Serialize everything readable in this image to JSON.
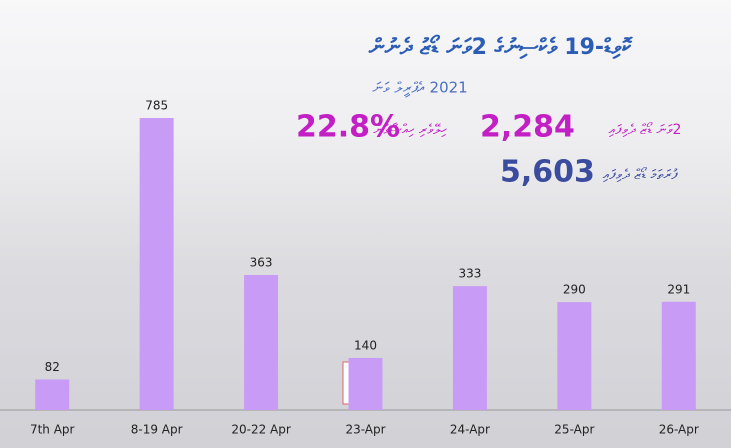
{
  "chart_data": {
    "type": "bar",
    "title": "ކޮވިޑް-19 ވެކްސިނުގެ 2ވަނަ ޑޯޒު ދެނުން",
    "subtitle": "2021 އެޕްރީލް ވަނަ",
    "stats": [
      {
        "value": "22.8%",
        "label": "ހިލޭވެރި ހިއްސާވުން",
        "color": "#c21fc4"
      },
      {
        "value": "2,284",
        "label": "2ވަނަ ޑޯޒް ދެވިފައި",
        "color": "#c21fc4"
      },
      {
        "value": "5,603",
        "label": "ފުރަތަމަ ޑޯޒް ދެވިފައި",
        "color": "#3b4c9e"
      }
    ],
    "categories": [
      "7th Apr",
      "8-19 Apr",
      "20-22 Apr",
      "23-Apr",
      "24-Apr",
      "25-Apr",
      "26-Apr"
    ],
    "values": [
      82,
      785,
      363,
      140,
      333,
      290,
      291
    ],
    "color": "#c89cf6"
  }
}
